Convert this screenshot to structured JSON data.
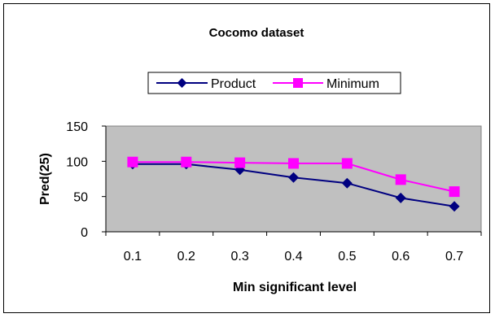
{
  "chart_data": {
    "type": "line",
    "title": "Cocomo dataset",
    "xlabel": "Min significant level",
    "ylabel": "Pred(25)",
    "categories": [
      "0.1",
      "0.2",
      "0.3",
      "0.4",
      "0.5",
      "0.6",
      "0.7"
    ],
    "ylim": [
      0,
      150
    ],
    "yticks": [
      "0",
      "50",
      "100",
      "150"
    ],
    "grid": false,
    "legend_position": "top",
    "plot_background": "#c0c0c0",
    "series": [
      {
        "name": "Product",
        "color": "#000080",
        "marker": "diamond",
        "values": [
          96,
          96,
          88,
          77,
          69,
          48,
          36
        ]
      },
      {
        "name": "Minimum",
        "color": "#ff00ff",
        "marker": "square",
        "values": [
          99,
          99,
          98,
          97,
          97,
          74,
          57
        ]
      }
    ]
  }
}
